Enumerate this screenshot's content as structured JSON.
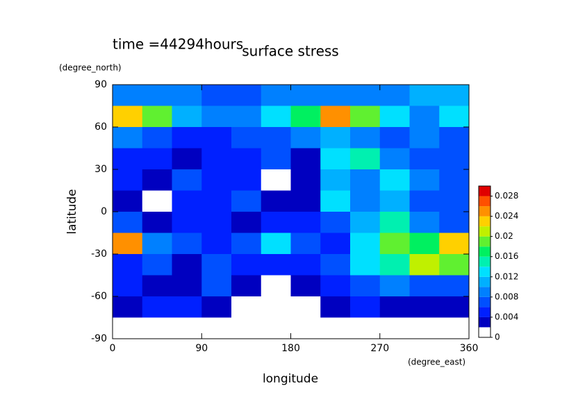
{
  "chart_data": {
    "type": "contour",
    "title": "surface stress",
    "subtitle": "time =44294hours",
    "x_label": "longitude",
    "x_unit": "(degree_east)",
    "y_label": "latitude",
    "y_unit": "(degree_north)",
    "xlim": [
      0,
      360
    ],
    "xticks": [
      0,
      90,
      180,
      270,
      360
    ],
    "ylim": [
      -90,
      90
    ],
    "yticks": [
      -90,
      -60,
      -30,
      0,
      30,
      60,
      90
    ],
    "lon": [
      15,
      45,
      75,
      105,
      135,
      165,
      195,
      225,
      255,
      285,
      315,
      345
    ],
    "lat": [
      82.5,
      67.5,
      52.5,
      37.5,
      22.5,
      7.5,
      -7.5,
      -22.5,
      -37.5,
      -52.5,
      -67.5,
      -82.5
    ],
    "z": [
      [
        0.009,
        0.008,
        0.008,
        0.007,
        0.007,
        0.008,
        0.009,
        0.008,
        0.008,
        0.009,
        0.01,
        0.011
      ],
      [
        0.022,
        0.018,
        0.01,
        0.008,
        0.009,
        0.012,
        0.016,
        0.024,
        0.018,
        0.012,
        0.009,
        0.012
      ],
      [
        0.008,
        0.006,
        0.005,
        0.005,
        0.006,
        0.006,
        0.008,
        0.01,
        0.009,
        0.007,
        0.008,
        0.007
      ],
      [
        0.004,
        0.005,
        0.003,
        0.004,
        0.005,
        0.006,
        0.003,
        0.012,
        0.014,
        0.009,
        0.006,
        0.007
      ],
      [
        0.004,
        0.003,
        0.006,
        0.004,
        0.005,
        0.001,
        0.002,
        0.01,
        0.008,
        0.012,
        0.009,
        0.006
      ],
      [
        0.003,
        0.001,
        0.004,
        0.005,
        0.006,
        0.002,
        0.003,
        0.012,
        0.008,
        0.011,
        0.007,
        0.006
      ],
      [
        0.006,
        0.003,
        0.005,
        0.004,
        0.002,
        0.004,
        0.005,
        0.006,
        0.01,
        0.014,
        0.008,
        0.006
      ],
      [
        0.024,
        0.008,
        0.006,
        0.005,
        0.006,
        0.012,
        0.006,
        0.005,
        0.012,
        0.018,
        0.016,
        0.022
      ],
      [
        0.005,
        0.006,
        0.003,
        0.006,
        0.005,
        0.004,
        0.005,
        0.006,
        0.012,
        0.014,
        0.02,
        0.018
      ],
      [
        0.004,
        0.003,
        0.003,
        0.006,
        0.003,
        0.001,
        0.002,
        0.004,
        0.006,
        0.008,
        0.006,
        0.006
      ],
      [
        0.002,
        0.004,
        0.004,
        0.002,
        0,
        0,
        0,
        0.002,
        0.004,
        0.003,
        0.002,
        0.003
      ],
      [
        0,
        0,
        0,
        0,
        0,
        0,
        0,
        0,
        0,
        0,
        0,
        0
      ]
    ],
    "levels": [
      0,
      0.002,
      0.004,
      0.006,
      0.008,
      0.01,
      0.012,
      0.014,
      0.016,
      0.018,
      0.02,
      0.022,
      0.024,
      0.026,
      0.028,
      0.03
    ],
    "colors": [
      "#ffffff",
      "#0000c0",
      "#0020ff",
      "#0050ff",
      "#0080ff",
      "#00b0ff",
      "#00e0ff",
      "#00f0b0",
      "#00f060",
      "#60f030",
      "#c0f000",
      "#ffd000",
      "#ff9000",
      "#ff5000",
      "#e00000"
    ],
    "cbar_ticks": [
      0,
      0.004,
      0.008,
      0.012,
      0.016,
      0.02,
      0.024,
      0.028
    ]
  }
}
